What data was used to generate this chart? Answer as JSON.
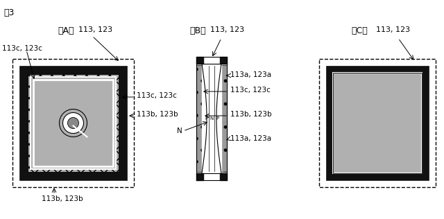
{
  "title": "図3",
  "bg_color": "#ffffff",
  "fig_width": 6.4,
  "fig_height": 3.16,
  "label_A": "（A）",
  "label_B": "（B）",
  "label_C": "（C）",
  "ref_main": "113, 123",
  "ref_c": "113c, 123c",
  "ref_b": "113b, 123b",
  "ref_a": "113a, 123a",
  "ref_N": "N",
  "gray_hatch": "#aaaaaa",
  "black": "#111111",
  "white": "#ffffff",
  "mid_gray": "#888888"
}
